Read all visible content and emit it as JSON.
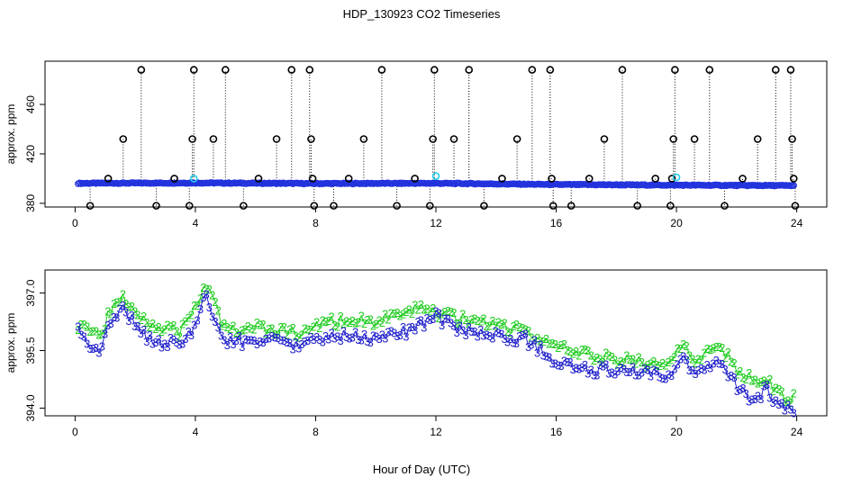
{
  "title": "HDP_130923  CO2 Timeseries",
  "xlabel": "Hour of Day (UTC)",
  "colors": {
    "axis": "#000000",
    "series_2": "#22cc22",
    "series_3": "#2222cc",
    "outlier": "#000000",
    "mean": "#2233dd",
    "cyan": "#22ccee"
  },
  "chart_data": [
    {
      "type": "scatter",
      "ylabel": "approx. ppm",
      "xlim": [
        -1,
        25
      ],
      "ylim": [
        377,
        495
      ],
      "xticks": [
        "0",
        "4",
        "8",
        "12",
        "16",
        "20",
        "24"
      ],
      "yticks": [
        "380",
        "420",
        "460"
      ],
      "baseline": {
        "x": [
          0.1,
          4.0,
          8.0,
          12.0,
          16.0,
          20.0,
          23.9
        ],
        "y": [
          396.2,
          396.5,
          396.0,
          396.2,
          395.2,
          394.7,
          394.3
        ]
      },
      "spikes_high": [
        {
          "x": 0.5,
          "y": 378
        },
        {
          "x": 1.1,
          "y": 400
        },
        {
          "x": 1.6,
          "y": 432
        },
        {
          "x": 2.2,
          "y": 488
        },
        {
          "x": 2.7,
          "y": 378
        },
        {
          "x": 3.3,
          "y": 400
        },
        {
          "x": 3.8,
          "y": 378
        },
        {
          "x": 3.9,
          "y": 432
        },
        {
          "x": 3.95,
          "y": 488
        },
        {
          "x": 4.6,
          "y": 432
        },
        {
          "x": 5.0,
          "y": 488
        },
        {
          "x": 5.6,
          "y": 378
        },
        {
          "x": 6.1,
          "y": 400
        },
        {
          "x": 6.7,
          "y": 432
        },
        {
          "x": 7.2,
          "y": 488
        },
        {
          "x": 7.8,
          "y": 488
        },
        {
          "x": 7.85,
          "y": 432
        },
        {
          "x": 7.9,
          "y": 400
        },
        {
          "x": 7.95,
          "y": 378
        },
        {
          "x": 8.6,
          "y": 378
        },
        {
          "x": 9.1,
          "y": 400
        },
        {
          "x": 9.6,
          "y": 432
        },
        {
          "x": 10.2,
          "y": 488
        },
        {
          "x": 10.7,
          "y": 378
        },
        {
          "x": 11.3,
          "y": 400
        },
        {
          "x": 11.8,
          "y": 378
        },
        {
          "x": 11.9,
          "y": 432
        },
        {
          "x": 11.95,
          "y": 488
        },
        {
          "x": 12.6,
          "y": 432
        },
        {
          "x": 13.1,
          "y": 488
        },
        {
          "x": 13.6,
          "y": 378
        },
        {
          "x": 14.2,
          "y": 400
        },
        {
          "x": 14.7,
          "y": 432
        },
        {
          "x": 15.2,
          "y": 488
        },
        {
          "x": 15.8,
          "y": 488
        },
        {
          "x": 15.85,
          "y": 400
        },
        {
          "x": 15.9,
          "y": 378
        },
        {
          "x": 16.5,
          "y": 378
        },
        {
          "x": 17.1,
          "y": 400
        },
        {
          "x": 17.6,
          "y": 432
        },
        {
          "x": 18.2,
          "y": 488
        },
        {
          "x": 18.7,
          "y": 378
        },
        {
          "x": 19.3,
          "y": 400
        },
        {
          "x": 19.8,
          "y": 378
        },
        {
          "x": 19.85,
          "y": 400
        },
        {
          "x": 19.9,
          "y": 432
        },
        {
          "x": 19.95,
          "y": 488
        },
        {
          "x": 20.6,
          "y": 432
        },
        {
          "x": 21.1,
          "y": 488
        },
        {
          "x": 21.6,
          "y": 378
        },
        {
          "x": 22.2,
          "y": 400
        },
        {
          "x": 22.7,
          "y": 432
        },
        {
          "x": 23.3,
          "y": 488
        },
        {
          "x": 23.8,
          "y": 488
        },
        {
          "x": 23.85,
          "y": 432
        },
        {
          "x": 23.9,
          "y": 400
        },
        {
          "x": 23.95,
          "y": 378
        }
      ],
      "cyan_points": [
        {
          "x": 3.95,
          "y": 400
        },
        {
          "x": 12.0,
          "y": 402
        },
        {
          "x": 20.0,
          "y": 401
        }
      ]
    },
    {
      "type": "line",
      "ylabel": "approx. ppm",
      "xlim": [
        -1,
        25
      ],
      "ylim": [
        393.8,
        397.6
      ],
      "xticks": [
        "0",
        "4",
        "8",
        "12",
        "16",
        "20",
        "24"
      ],
      "yticks": [
        "394.0",
        "395.5",
        "397.0"
      ],
      "series": [
        {
          "symbol": "2",
          "x": [
            0.1,
            0.5,
            0.8,
            1.1,
            1.6,
            2.0,
            2.5,
            3.0,
            3.5,
            4.0,
            4.3,
            4.6,
            5.0,
            6.0,
            7.0,
            7.5,
            8.0,
            9.0,
            10.0,
            11.0,
            11.5,
            12.0,
            12.5,
            13.0,
            14.0,
            15.0,
            16.0,
            17.0,
            18.0,
            19.0,
            19.8,
            20.2,
            20.5,
            21.0,
            21.5,
            22.0,
            22.5,
            23.0,
            23.5,
            23.9
          ],
          "y": [
            396.2,
            396.1,
            395.9,
            396.4,
            396.9,
            396.6,
            396.2,
            396.1,
            396.0,
            396.6,
            397.3,
            396.8,
            396.0,
            396.1,
            396.0,
            395.9,
            396.2,
            396.3,
            396.3,
            396.4,
            396.7,
            396.5,
            396.4,
            396.3,
            396.2,
            396.0,
            395.6,
            395.4,
            395.3,
            395.2,
            395.1,
            395.7,
            395.3,
            395.4,
            395.6,
            395.0,
            394.8,
            394.7,
            394.3,
            394.3
          ]
        },
        {
          "symbol": "3",
          "x": [
            0.1,
            0.5,
            0.8,
            1.1,
            1.6,
            2.0,
            2.5,
            3.0,
            3.5,
            4.0,
            4.3,
            4.6,
            5.0,
            6.0,
            7.0,
            7.5,
            8.0,
            9.0,
            10.0,
            11.0,
            11.5,
            12.0,
            12.5,
            13.0,
            14.0,
            15.0,
            16.0,
            17.0,
            18.0,
            19.0,
            19.8,
            20.2,
            20.5,
            21.0,
            21.5,
            22.0,
            22.5,
            23.0,
            23.5,
            23.9
          ],
          "y": [
            396.0,
            395.7,
            395.3,
            396.1,
            396.6,
            396.2,
            395.8,
            395.7,
            395.7,
            396.1,
            397.0,
            396.4,
            395.7,
            395.8,
            395.7,
            395.6,
            395.8,
            395.9,
            395.8,
            396.0,
            396.2,
            396.4,
            396.2,
            396.0,
            395.9,
            395.8,
            395.2,
            395.0,
            395.0,
            394.9,
            394.8,
            395.3,
            394.9,
            395.0,
            395.2,
            394.6,
            394.2,
            394.5,
            394.0,
            394.0
          ]
        }
      ]
    }
  ]
}
